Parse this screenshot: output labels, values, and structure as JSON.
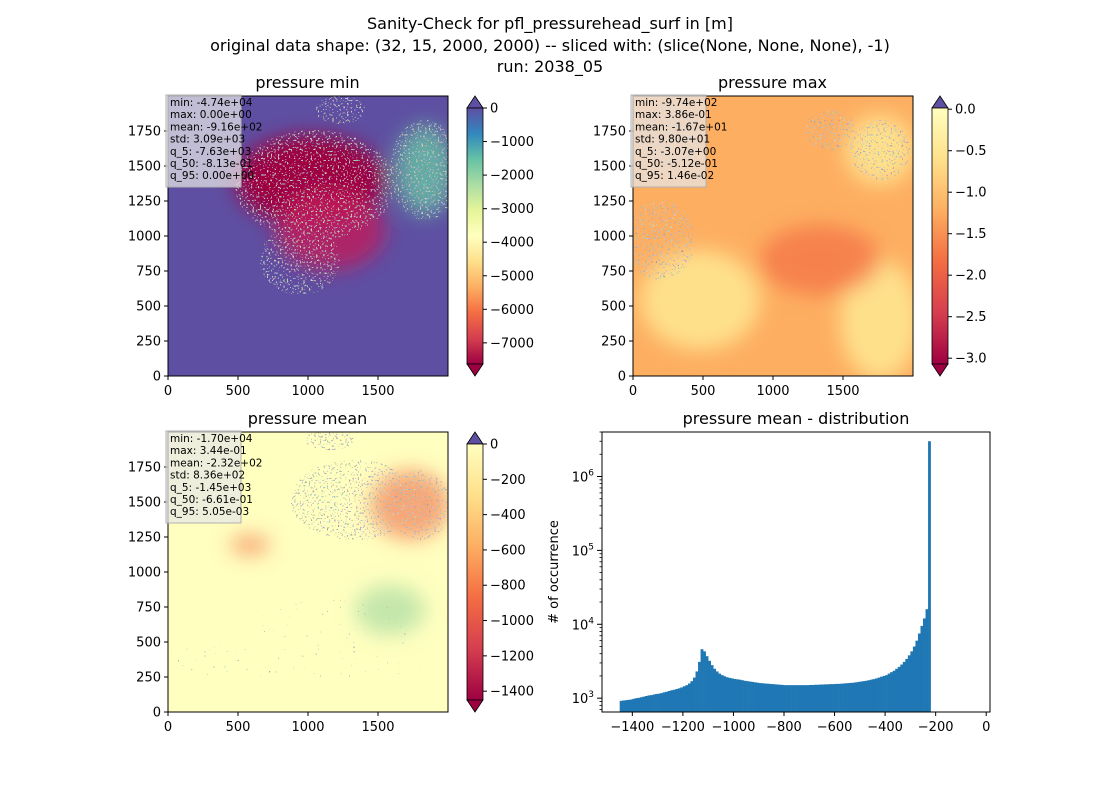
{
  "figure": {
    "suptitle_lines": [
      "Sanity-Check for pfl_pressurehead_surf in [m]",
      "original data shape: (32, 15, 2000, 2000) -- sliced with: (slice(None, None, None), -1)",
      "run: 2038_05"
    ]
  },
  "chart_data": [
    {
      "type": "heatmap",
      "title": "pressure min",
      "colormap": "Spectral",
      "xlim": [
        0,
        2000
      ],
      "ylim": [
        0,
        2000
      ],
      "xticks": [
        0,
        500,
        1000,
        1500
      ],
      "yticks": [
        0,
        250,
        500,
        750,
        1000,
        1250,
        1500,
        1750
      ],
      "colorbar": {
        "min": -7630,
        "max": 0,
        "extend": "both",
        "ticks": [
          0,
          -1000,
          -2000,
          -3000,
          -4000,
          -5000,
          -6000,
          -7000
        ],
        "ticklabels": [
          "0",
          "−1000",
          "−2000",
          "−3000",
          "−4000",
          "−5000",
          "−6000",
          "−7000"
        ]
      },
      "stats_box": [
        "min: -4.74e+04",
        "max: 0.00e+00",
        "mean: -9.16e+02",
        "std: 3.09e+03",
        "q_5: -7.63e+03",
        "q_50: -8.13e-01",
        "q_95: 0.00e+00"
      ]
    },
    {
      "type": "heatmap",
      "title": "pressure max",
      "colormap": "Spectral",
      "xlim": [
        0,
        2000
      ],
      "ylim": [
        0,
        2000
      ],
      "xticks": [
        0,
        500,
        1000,
        1500
      ],
      "yticks": [
        0,
        250,
        500,
        750,
        1000,
        1250,
        1500,
        1750
      ],
      "colorbar": {
        "min": -3.07,
        "max": 0.0146,
        "extend": "both",
        "ticks": [
          0.0,
          -0.5,
          -1.0,
          -1.5,
          -2.0,
          -2.5,
          -3.0
        ],
        "ticklabels": [
          "0.0",
          "−0.5",
          "−1.0",
          "−1.5",
          "−2.0",
          "−2.5",
          "−3.0"
        ]
      },
      "stats_box": [
        "min: -9.74e+02",
        "max: 3.86e-01",
        "mean: -1.67e+01",
        "std: 9.80e+01",
        "q_5: -3.07e+00",
        "q_50: -5.12e-01",
        "q_95: 1.46e-02"
      ]
    },
    {
      "type": "heatmap",
      "title": "pressure mean",
      "colormap": "Spectral",
      "xlim": [
        0,
        2000
      ],
      "ylim": [
        0,
        2000
      ],
      "xticks": [
        0,
        500,
        1000,
        1500
      ],
      "yticks": [
        0,
        250,
        500,
        750,
        1000,
        1250,
        1500,
        1750
      ],
      "colorbar": {
        "min": -1450,
        "max": 0.00505,
        "extend": "both",
        "ticks": [
          0,
          -200,
          -400,
          -600,
          -800,
          -1000,
          -1200,
          -1400
        ],
        "ticklabels": [
          "0",
          "−200",
          "−400",
          "−600",
          "−800",
          "−1000",
          "−1200",
          "−1400"
        ]
      },
      "stats_box": [
        "min: -1.70e+04",
        "max: 3.44e-01",
        "mean: -2.32e+02",
        "std: 8.36e+02",
        "q_5: -1.45e+03",
        "q_50: -6.61e-01",
        "q_95: 5.05e-03"
      ]
    },
    {
      "type": "bar",
      "title": "pressure mean - distribution",
      "ylabel": "# of occurrence",
      "xlabel": "",
      "yscale": "log",
      "xlim": [
        -1520,
        15
      ],
      "ylim": [
        650,
        4000000
      ],
      "xticks": [
        -1400,
        -1200,
        -1000,
        -800,
        -600,
        -400,
        -200,
        0
      ],
      "xticklabels": [
        "−1400",
        "−1200",
        "−1000",
        "−800",
        "−600",
        "−400",
        "−200",
        "0"
      ],
      "yticks": [
        1000,
        10000,
        100000,
        1000000
      ],
      "ytickexps": [
        "3",
        "4",
        "5",
        "6"
      ],
      "bin_start": -1450,
      "bin_width": 10,
      "bar_color": "#1f77b4",
      "counts": [
        920,
        930,
        940,
        950,
        960,
        980,
        1000,
        1010,
        1030,
        1050,
        1070,
        1090,
        1100,
        1120,
        1140,
        1150,
        1170,
        1200,
        1220,
        1250,
        1280,
        1300,
        1330,
        1360,
        1400,
        1450,
        1500,
        1580,
        1700,
        1900,
        2300,
        3100,
        4600,
        4300,
        3700,
        3200,
        2800,
        2500,
        2300,
        2150,
        2050,
        1980,
        1920,
        1880,
        1850,
        1820,
        1800,
        1780,
        1750,
        1720,
        1700,
        1680,
        1660,
        1640,
        1620,
        1600,
        1590,
        1580,
        1570,
        1560,
        1550,
        1540,
        1530,
        1520,
        1510,
        1500,
        1500,
        1500,
        1500,
        1500,
        1500,
        1500,
        1500,
        1500,
        1500,
        1510,
        1510,
        1520,
        1520,
        1530,
        1530,
        1540,
        1540,
        1550,
        1550,
        1560,
        1560,
        1570,
        1580,
        1590,
        1600,
        1610,
        1620,
        1640,
        1660,
        1680,
        1700,
        1720,
        1750,
        1780,
        1810,
        1850,
        1900,
        1950,
        2000,
        2050,
        2150,
        2250,
        2350,
        2500,
        2650,
        2850,
        3100,
        3400,
        3800,
        4300,
        5000,
        6000,
        7500,
        9500,
        12000,
        16000,
        3000000
      ]
    }
  ]
}
